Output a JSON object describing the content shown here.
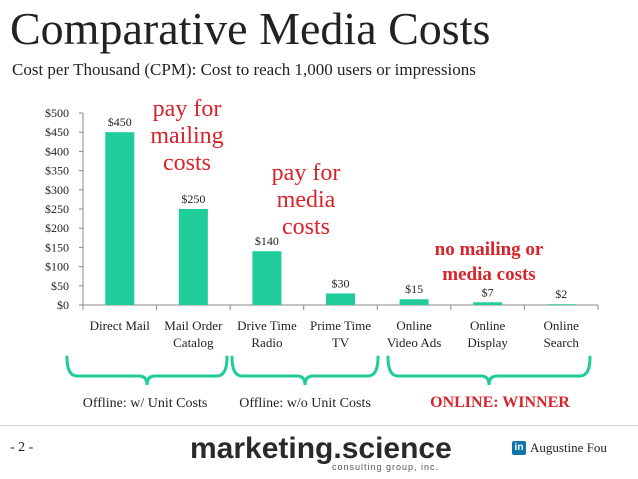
{
  "slide": {
    "title": "Comparative Media Costs",
    "subtitle": "Cost per Thousand (CPM): Cost to reach 1,000 users or impressions",
    "page_number": "- 2 -",
    "logo_text": "marketing.science",
    "logo_subtext": "consulting group, inc.",
    "author": "Augustine Fou",
    "linkedin_icon": "in"
  },
  "colors": {
    "bar": "#1fcc9a",
    "annotation": "#d9232a",
    "bracket": "#1fcc9a",
    "text": "#222222"
  },
  "chart_data": {
    "type": "bar",
    "categories": [
      [
        "Direct Mail"
      ],
      [
        "Mail Order",
        "Catalog"
      ],
      [
        "Drive Time",
        "Radio"
      ],
      [
        "Prime Time",
        "TV"
      ],
      [
        "Online",
        "Video Ads"
      ],
      [
        "Online",
        "Display"
      ],
      [
        "Online",
        "Search"
      ]
    ],
    "values": [
      450,
      250,
      140,
      30,
      15,
      7,
      2
    ],
    "data_labels": [
      "$450",
      "$250",
      "$140",
      "$30",
      "$15",
      "$7",
      "$2"
    ],
    "ylim": [
      0,
      500
    ],
    "yticks": [
      "$0",
      "$50",
      "$100",
      "$150",
      "$200",
      "$250",
      "$300",
      "$350",
      "$400",
      "$450",
      "$500"
    ],
    "grid": false,
    "legend": "none"
  },
  "annotations": [
    {
      "lines": [
        "pay for",
        "mailing",
        "costs"
      ]
    },
    {
      "lines": [
        "pay for",
        "media",
        "costs"
      ]
    },
    {
      "lines": [
        "no mailing or",
        "media costs"
      ]
    }
  ],
  "groups": [
    {
      "label": "Offline: w/ Unit Costs"
    },
    {
      "label": "Offline: w/o Unit Costs"
    },
    {
      "label": "ONLINE: WINNER"
    }
  ]
}
